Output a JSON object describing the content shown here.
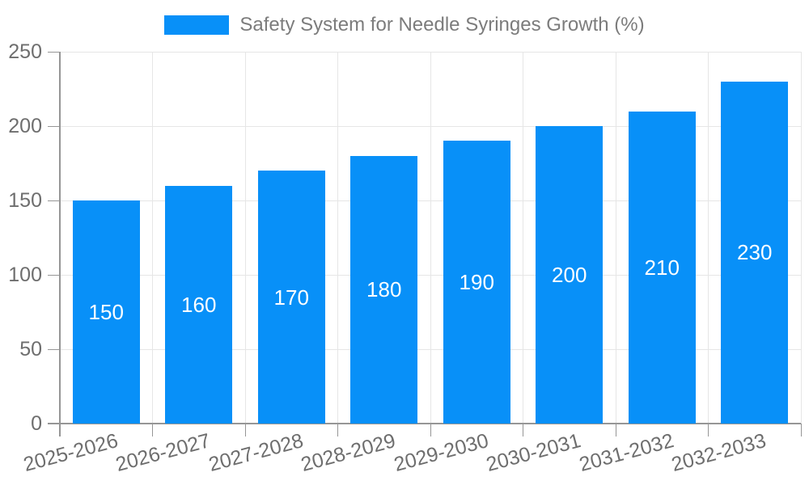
{
  "legend": {
    "label": "Safety System for Needle Syringes Growth (%)"
  },
  "chart_data": {
    "type": "bar",
    "title": "Safety System for Needle Syringes Growth (%)",
    "series_name": "Safety System for Needle Syringes Growth (%)",
    "categories": [
      "2025-2026",
      "2026-2027",
      "2027-2028",
      "2028-2029",
      "2029-2030",
      "2030-2031",
      "2031-2032",
      "2032-2033"
    ],
    "values": [
      150,
      160,
      170,
      180,
      190,
      200,
      210,
      230
    ],
    "value_labels": [
      "150",
      "160",
      "170",
      "180",
      "190",
      "200",
      "210",
      "230"
    ],
    "xlabel": "",
    "ylabel": "",
    "ylim": [
      0,
      250
    ],
    "yticks": [
      0,
      50,
      100,
      150,
      200,
      250
    ],
    "ytick_labels": [
      "0",
      "50",
      "100",
      "150",
      "200",
      "250"
    ],
    "grid": true,
    "legend_position": "top-center",
    "x_label_rotation_deg": -15
  },
  "colors": {
    "bar": "#0890f8",
    "grid": "#e6e6e6",
    "axis": "#969696",
    "tick_label": "#6e6e6e",
    "legend_text": "#7c7c7c",
    "value_label": "#ffffff",
    "background": "#ffffff"
  }
}
